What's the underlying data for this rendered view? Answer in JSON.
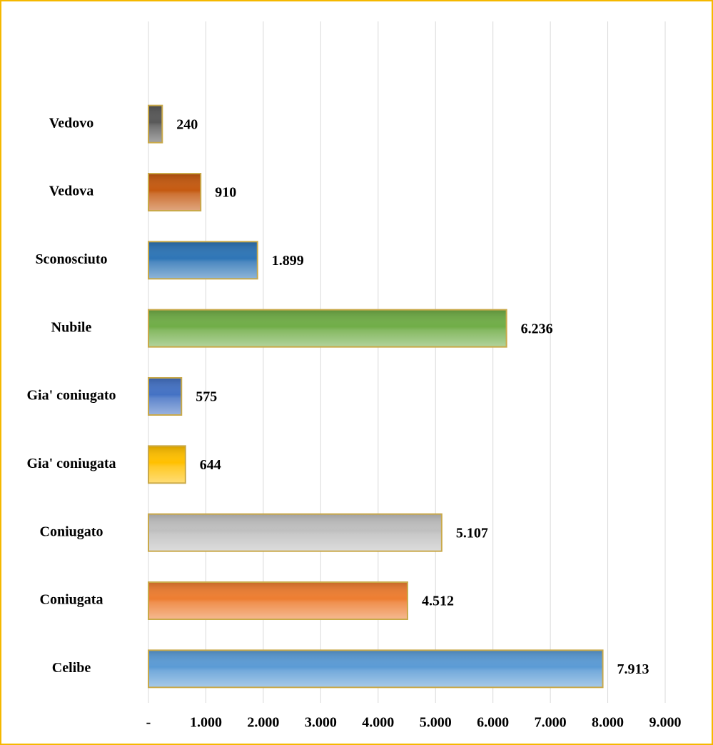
{
  "chart_data": {
    "type": "bar",
    "orientation": "horizontal",
    "categories": [
      "Vedovo",
      "Vedova",
      "Sconosciuto",
      "Nubile",
      "Gia' coniugato",
      "Gia' coniugata",
      "Coniugato",
      "Coniugata",
      "Celibe"
    ],
    "values": [
      240,
      910,
      1899,
      6236,
      575,
      644,
      5107,
      4512,
      7913
    ],
    "value_labels": [
      "240",
      "910",
      "1.899",
      "6.236",
      "575",
      "644",
      "5.107",
      "4.512",
      "7.913"
    ],
    "colors": [
      "#595959",
      "#c55a11",
      "#2e75b6",
      "#70ad47",
      "#4472c4",
      "#ffc000",
      "#bfbfbf",
      "#ed7d31",
      "#5b9bd5"
    ],
    "xlim": [
      0,
      9000
    ],
    "xticks": [
      {
        "value": 0,
        "label": "-"
      },
      {
        "value": 1000,
        "label": "1.000"
      },
      {
        "value": 2000,
        "label": "2.000"
      },
      {
        "value": 3000,
        "label": "3.000"
      },
      {
        "value": 4000,
        "label": "4.000"
      },
      {
        "value": 5000,
        "label": "5.000"
      },
      {
        "value": 6000,
        "label": "6.000"
      },
      {
        "value": 7000,
        "label": "7.000"
      },
      {
        "value": 8000,
        "label": "8.000"
      },
      {
        "value": 9000,
        "label": "9.000"
      }
    ],
    "grid": true
  }
}
